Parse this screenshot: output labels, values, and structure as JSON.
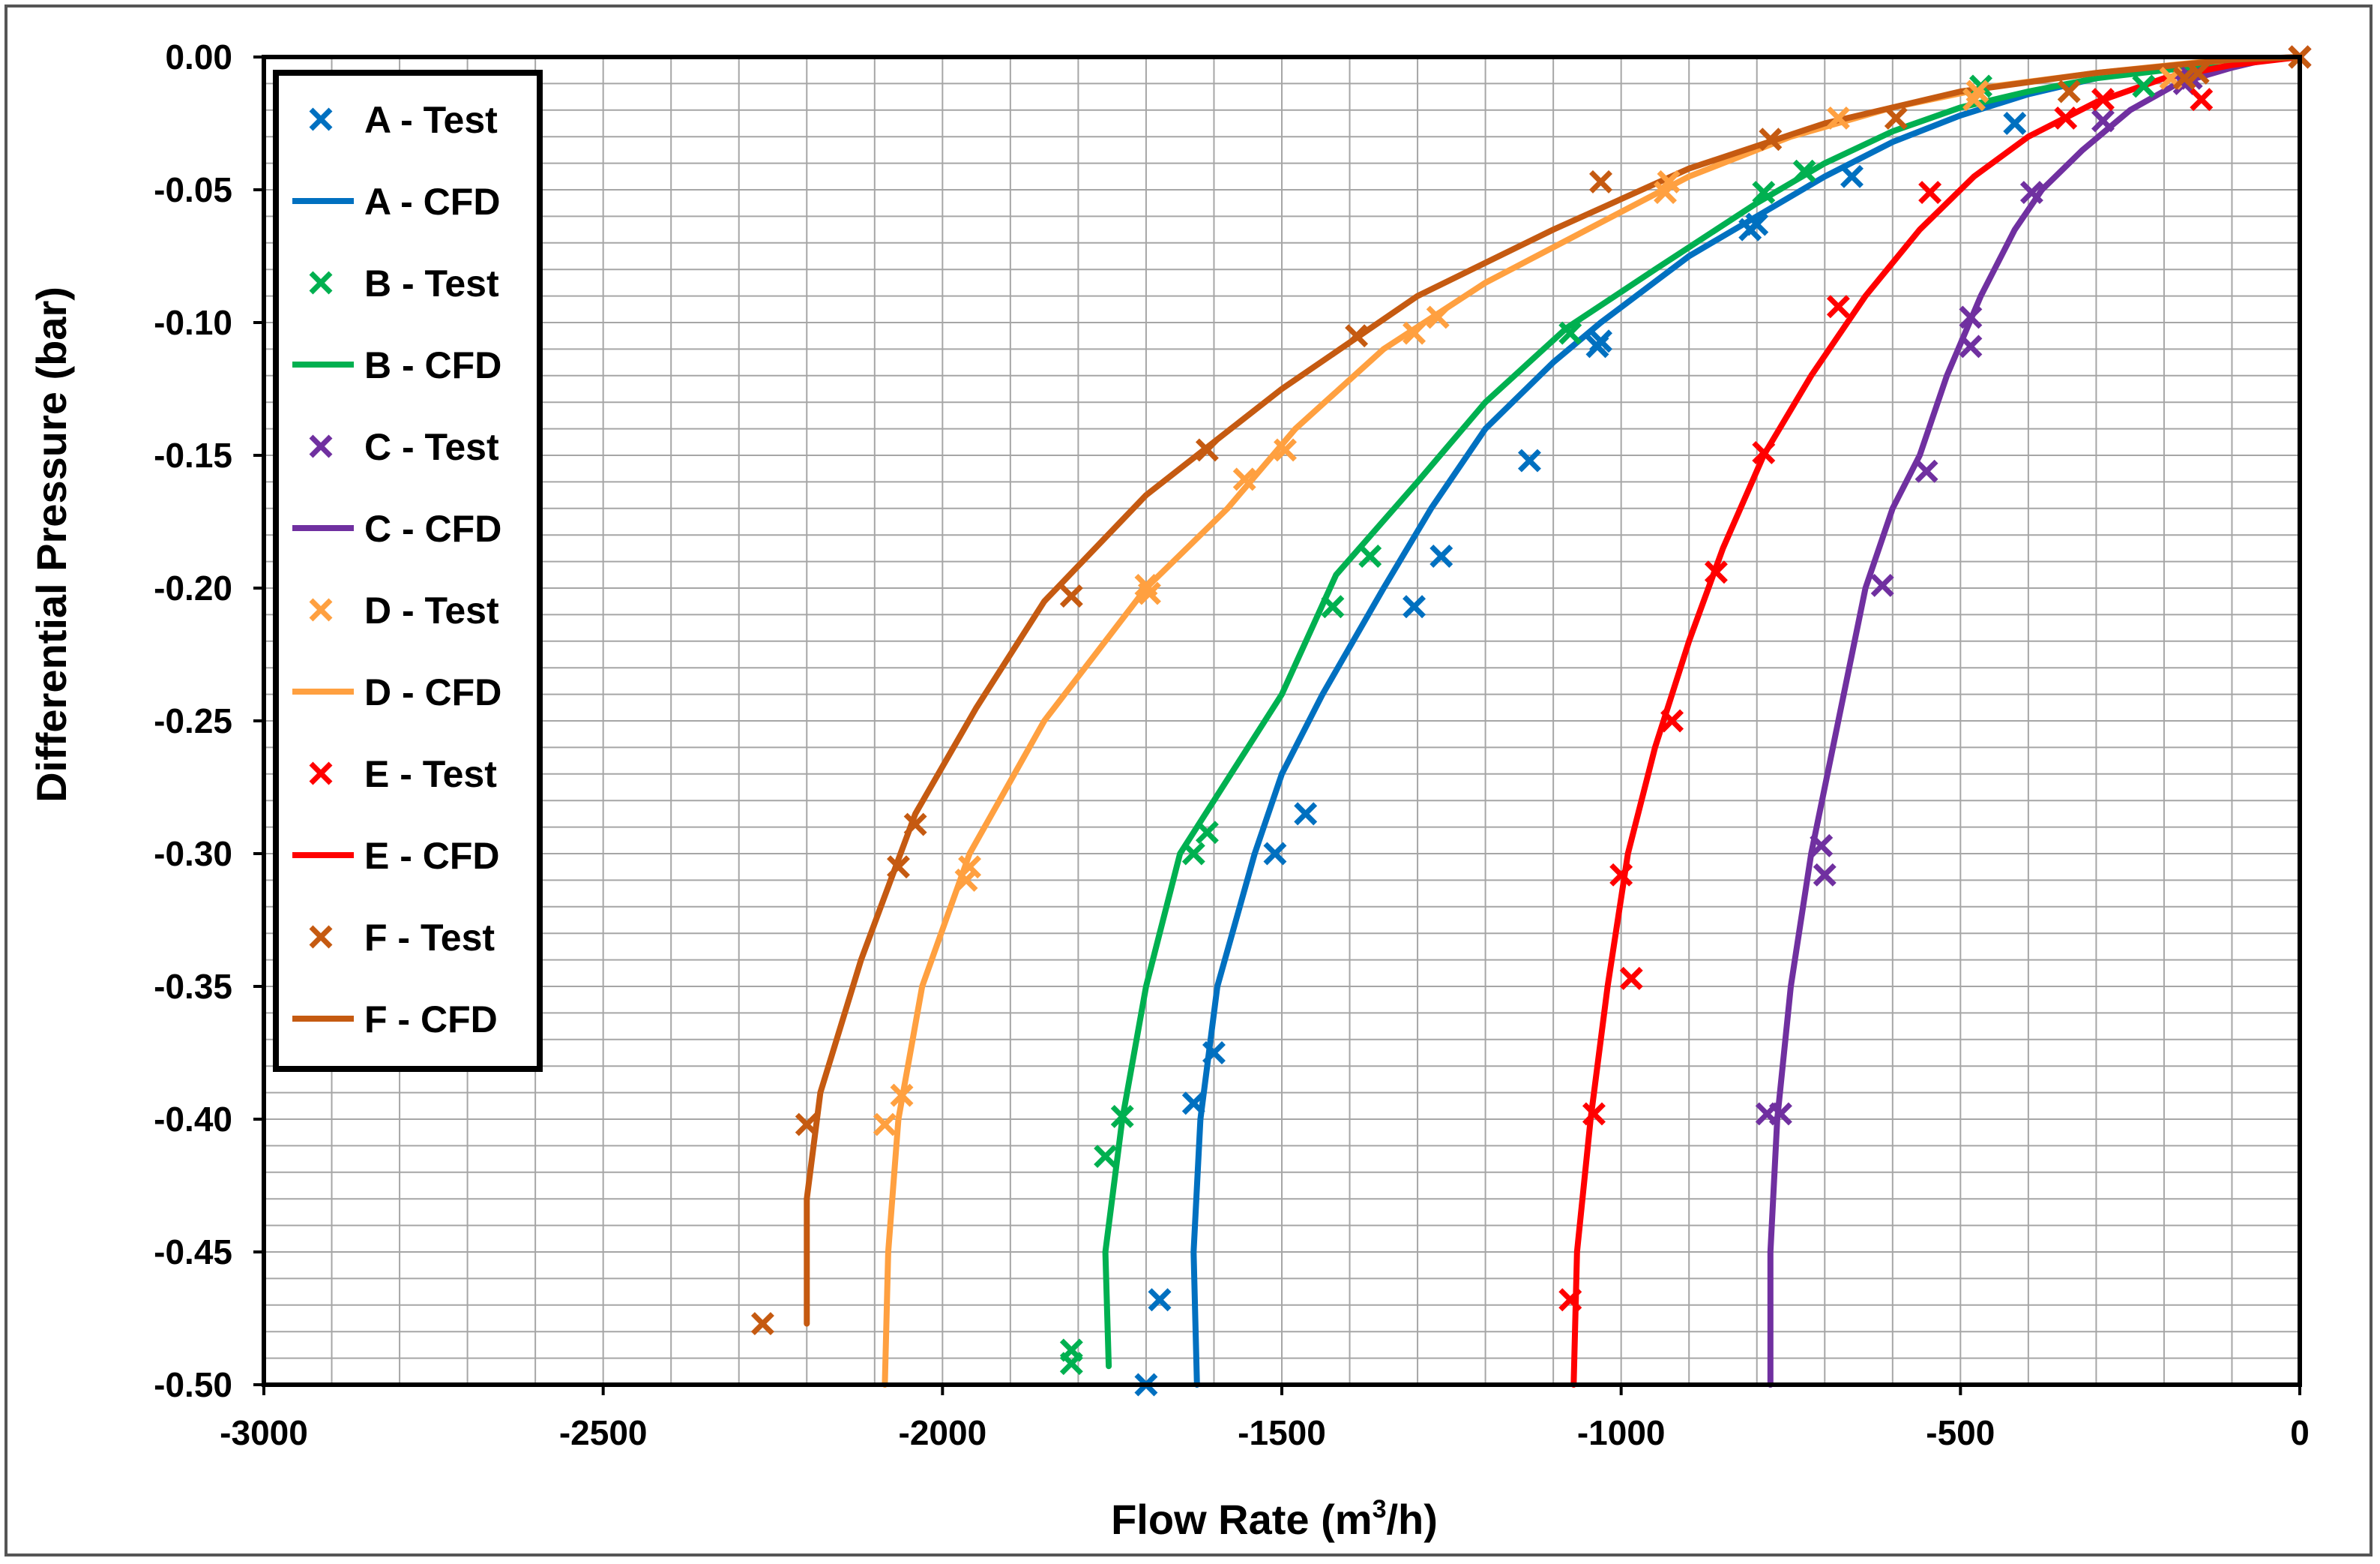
{
  "chart_data": {
    "type": "scatter",
    "title": "",
    "xlabel_main": "Flow Rate (m",
    "xlabel_sup": "3",
    "xlabel_tail": "/h)",
    "ylabel": "Differential Pressure (bar)",
    "xlim": [
      -3000,
      0
    ],
    "ylim": [
      -0.5,
      0.0
    ],
    "x_ticks": [
      -3000,
      -2500,
      -2000,
      -1500,
      -1000,
      -500,
      0
    ],
    "x_tick_labels": [
      "-3000",
      "-2500",
      "-2000",
      "-1500",
      "-1000",
      "-500",
      "0"
    ],
    "y_ticks": [
      0.0,
      -0.05,
      -0.1,
      -0.15,
      -0.2,
      -0.25,
      -0.3,
      -0.35,
      -0.4,
      -0.45,
      -0.5
    ],
    "y_tick_labels": [
      "0.00",
      "-0.05",
      "-0.10",
      "-0.15",
      "-0.20",
      "-0.25",
      "-0.30",
      "-0.35",
      "-0.40",
      "-0.45",
      "-0.50"
    ],
    "grid": true,
    "legend_position": "top-left",
    "series": [
      {
        "name": "A - Test",
        "kind": "marker",
        "color": "#0070C0",
        "x": [
          -1700,
          -1680,
          -1630,
          -1600,
          -1510,
          -1465,
          -1305,
          -1265,
          -1135,
          -1035,
          -1030,
          -810,
          -800,
          -660,
          -420,
          0
        ],
        "y": [
          -0.5,
          -0.468,
          -0.394,
          -0.375,
          -0.3,
          -0.285,
          -0.207,
          -0.188,
          -0.152,
          -0.109,
          -0.107,
          -0.065,
          -0.063,
          -0.045,
          -0.025,
          0.0
        ]
      },
      {
        "name": "A - CFD",
        "kind": "line",
        "color": "#0070C0",
        "x": [
          -1625,
          -1630,
          -1620,
          -1595,
          -1540,
          -1500,
          -1440,
          -1350,
          -1280,
          -1200,
          -1100,
          -1030,
          -900,
          -800,
          -700,
          -600,
          -500,
          -400,
          -300,
          -200,
          0
        ],
        "y": [
          -0.5,
          -0.45,
          -0.4,
          -0.35,
          -0.3,
          -0.27,
          -0.24,
          -0.2,
          -0.17,
          -0.14,
          -0.115,
          -0.1,
          -0.075,
          -0.06,
          -0.045,
          -0.032,
          -0.022,
          -0.014,
          -0.008,
          -0.004,
          0.0
        ]
      },
      {
        "name": "B - Test",
        "kind": "marker",
        "color": "#00B050",
        "x": [
          -1810,
          -1810,
          -1760,
          -1735,
          -1630,
          -1610,
          -1425,
          -1370,
          -1075,
          -790,
          -730,
          -480,
          -470,
          -230,
          0
        ],
        "y": [
          -0.492,
          -0.487,
          -0.414,
          -0.399,
          -0.3,
          -0.292,
          -0.207,
          -0.188,
          -0.104,
          -0.051,
          -0.043,
          -0.016,
          -0.011,
          -0.011,
          0.0
        ]
      },
      {
        "name": "B - CFD",
        "kind": "line",
        "color": "#00B050",
        "x": [
          -1755,
          -1760,
          -1735,
          -1700,
          -1650,
          -1600,
          -1500,
          -1420,
          -1300,
          -1200,
          -1080,
          -950,
          -800,
          -700,
          -600,
          -500,
          -400,
          -300,
          -200,
          0
        ],
        "y": [
          -0.493,
          -0.45,
          -0.4,
          -0.35,
          -0.3,
          -0.28,
          -0.24,
          -0.195,
          -0.16,
          -0.13,
          -0.102,
          -0.08,
          -0.055,
          -0.04,
          -0.028,
          -0.019,
          -0.013,
          -0.008,
          -0.005,
          0.0
        ]
      },
      {
        "name": "C - Test",
        "kind": "marker",
        "color": "#7030A0",
        "x": [
          -785,
          -765,
          -700,
          -705,
          -615,
          -550,
          -485,
          -485,
          -395,
          -290,
          -170,
          -160,
          0
        ],
        "y": [
          -0.398,
          -0.398,
          -0.308,
          -0.297,
          -0.199,
          -0.156,
          -0.109,
          -0.098,
          -0.051,
          -0.024,
          -0.01,
          -0.008,
          0.0
        ]
      },
      {
        "name": "C - CFD",
        "kind": "line",
        "color": "#7030A0",
        "x": [
          -780,
          -780,
          -770,
          -750,
          -720,
          -700,
          -680,
          -640,
          -600,
          -560,
          -520,
          -470,
          -420,
          -380,
          -320,
          -250,
          -180,
          -100,
          -50,
          0
        ],
        "y": [
          -0.5,
          -0.45,
          -0.4,
          -0.35,
          -0.3,
          -0.275,
          -0.25,
          -0.2,
          -0.17,
          -0.15,
          -0.12,
          -0.09,
          -0.065,
          -0.05,
          -0.035,
          -0.02,
          -0.01,
          -0.004,
          -0.001,
          0.0
        ]
      },
      {
        "name": "D - Test",
        "kind": "marker",
        "color": "#FFA040",
        "x": [
          -2085,
          -2060,
          -1965,
          -1960,
          -1695,
          -1700,
          -1555,
          -1495,
          -1305,
          -1270,
          -935,
          -930,
          -680,
          -480,
          -475,
          -190,
          0
        ],
        "y": [
          -0.402,
          -0.391,
          -0.31,
          -0.305,
          -0.202,
          -0.199,
          -0.159,
          -0.148,
          -0.104,
          -0.098,
          -0.051,
          -0.047,
          -0.023,
          -0.016,
          -0.013,
          -0.008,
          0.0
        ]
      },
      {
        "name": "D - CFD",
        "kind": "line",
        "color": "#FFA040",
        "x": [
          -2085,
          -2080,
          -2065,
          -2030,
          -1960,
          -1850,
          -1700,
          -1580,
          -1480,
          -1350,
          -1200,
          -1050,
          -900,
          -750,
          -600,
          -450,
          -300,
          -150,
          0
        ],
        "y": [
          -0.5,
          -0.45,
          -0.4,
          -0.35,
          -0.3,
          -0.25,
          -0.2,
          -0.17,
          -0.14,
          -0.11,
          -0.085,
          -0.065,
          -0.045,
          -0.03,
          -0.019,
          -0.011,
          -0.006,
          -0.002,
          0.0
        ]
      },
      {
        "name": "E - Test",
        "kind": "marker",
        "color": "#FF0000",
        "x": [
          -1075,
          -1040,
          -985,
          -1000,
          -925,
          -860,
          -790,
          -680,
          -545,
          -345,
          -290,
          -145,
          0
        ],
        "y": [
          -0.468,
          -0.398,
          -0.347,
          -0.308,
          -0.25,
          -0.194,
          -0.149,
          -0.094,
          -0.051,
          -0.023,
          -0.016,
          -0.016,
          0.0
        ]
      },
      {
        "name": "E - CFD",
        "kind": "line",
        "color": "#FF0000",
        "x": [
          -1070,
          -1065,
          -1045,
          -1020,
          -990,
          -950,
          -900,
          -850,
          -790,
          -720,
          -640,
          -560,
          -480,
          -400,
          -300,
          -200,
          -100,
          0
        ],
        "y": [
          -0.5,
          -0.45,
          -0.4,
          -0.35,
          -0.3,
          -0.26,
          -0.22,
          -0.185,
          -0.15,
          -0.12,
          -0.09,
          -0.065,
          -0.045,
          -0.03,
          -0.017,
          -0.008,
          -0.003,
          0.0
        ]
      },
      {
        "name": "F - Test",
        "kind": "marker",
        "color": "#C55A11",
        "x": [
          -2265,
          -2200,
          -2065,
          -2040,
          -1810,
          -1610,
          -1390,
          -1030,
          -780,
          -595,
          -340,
          -170,
          -150,
          0
        ],
        "y": [
          -0.477,
          -0.402,
          -0.305,
          -0.289,
          -0.203,
          -0.148,
          -0.105,
          -0.047,
          -0.031,
          -0.023,
          -0.013,
          -0.008,
          -0.006,
          0.0
        ]
      },
      {
        "name": "F - CFD",
        "kind": "line",
        "color": "#C55A11",
        "x": [
          -2200,
          -2200,
          -2180,
          -2120,
          -2040,
          -1950,
          -1850,
          -1700,
          -1500,
          -1300,
          -1100,
          -900,
          -700,
          -500,
          -300,
          -100,
          0
        ],
        "y": [
          -0.477,
          -0.43,
          -0.39,
          -0.34,
          -0.285,
          -0.245,
          -0.205,
          -0.165,
          -0.125,
          -0.09,
          -0.065,
          -0.042,
          -0.025,
          -0.013,
          -0.006,
          -0.001,
          0.0
        ]
      }
    ]
  }
}
